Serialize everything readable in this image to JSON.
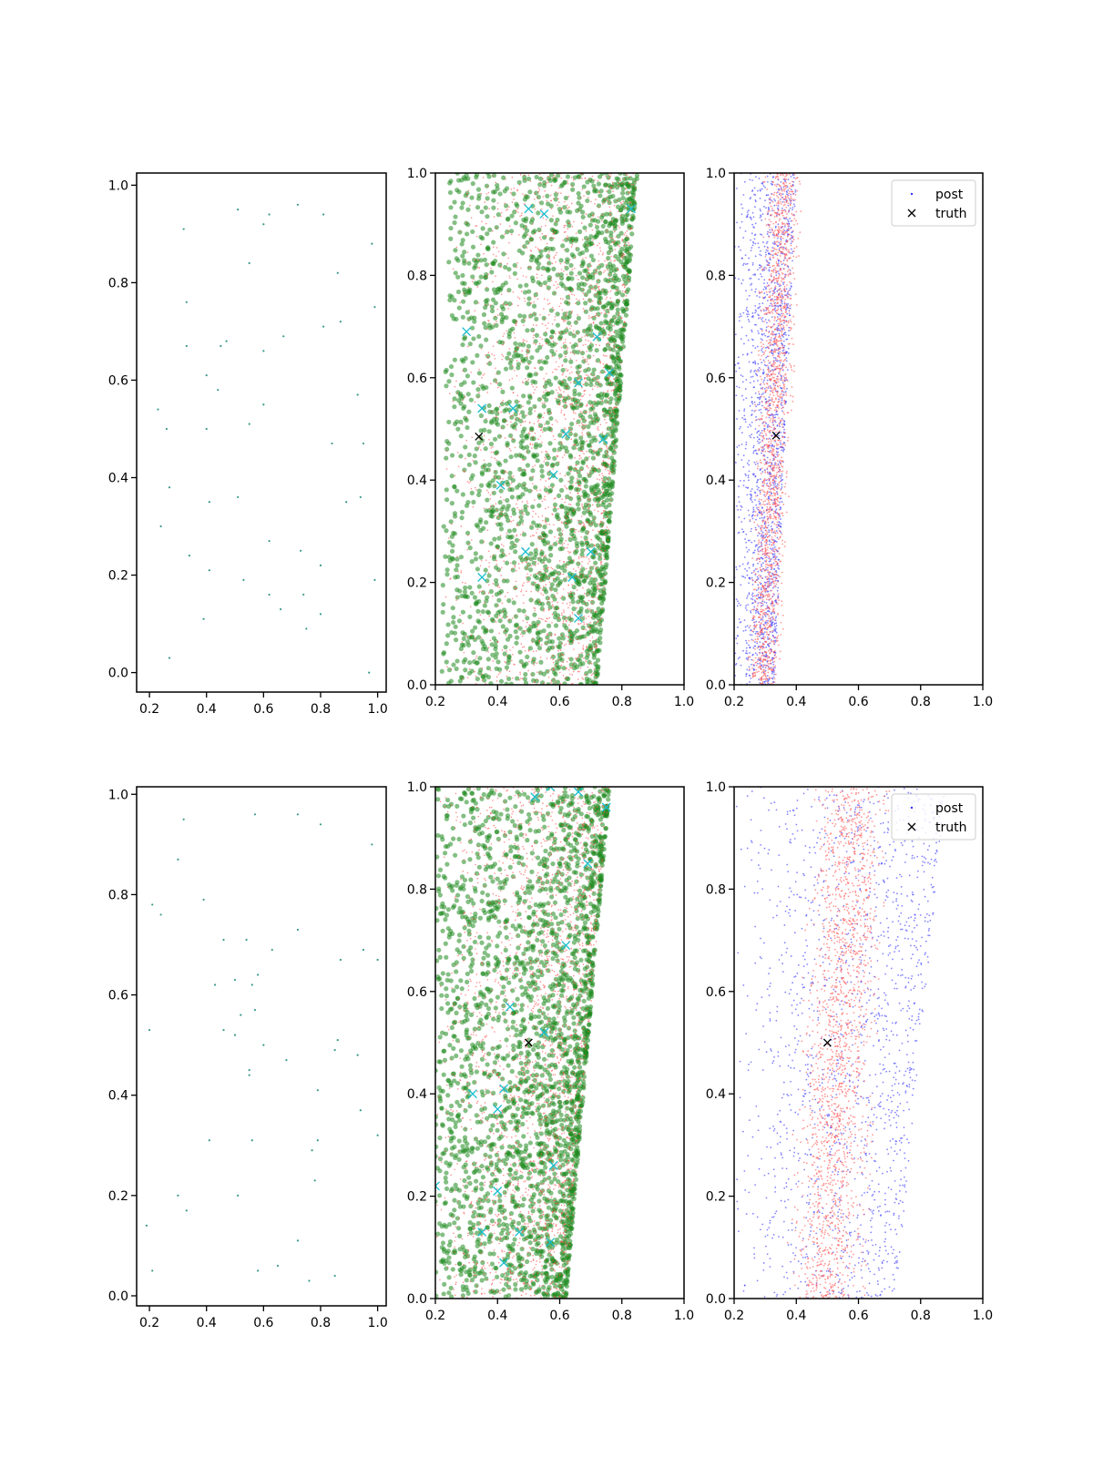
{
  "figure": {
    "background": "#ffffff",
    "colors": {
      "sample_dots": "#3a9a8a",
      "green_points": "#1f8a1f",
      "red_points": "#ff5555",
      "blue_points": "#3333ff",
      "cyan_markers": "#17becf",
      "truth_marker": "#000000"
    }
  },
  "legend": {
    "post_label": "post",
    "truth_label": "truth"
  },
  "chart_data": [
    {
      "type": "scatter",
      "row": 0,
      "col": 0,
      "xlim": [
        0.2,
        1.0
      ],
      "ylim": [
        0.0,
        1.0
      ],
      "xticks": [
        "0.2",
        "0.4",
        "0.6",
        "0.8",
        "1.0"
      ],
      "yticks": [
        "0.0",
        "0.2",
        "0.4",
        "0.6",
        "0.8",
        "1.0"
      ],
      "grid": false,
      "legend": "none",
      "series": [
        {
          "marker": "dot",
          "color": "#3a9a8a",
          "points": [
            [
              0.51,
              0.95
            ],
            [
              0.62,
              0.94
            ],
            [
              0.72,
              0.96
            ],
            [
              0.81,
              0.94
            ],
            [
              0.32,
              0.91
            ],
            [
              0.6,
              0.92
            ],
            [
              0.98,
              0.88
            ],
            [
              0.55,
              0.84
            ],
            [
              0.86,
              0.82
            ],
            [
              0.33,
              0.76
            ],
            [
              0.99,
              0.75
            ],
            [
              0.87,
              0.72
            ],
            [
              0.81,
              0.71
            ],
            [
              0.67,
              0.69
            ],
            [
              0.47,
              0.68
            ],
            [
              0.45,
              0.67
            ],
            [
              0.33,
              0.67
            ],
            [
              0.6,
              0.66
            ],
            [
              0.4,
              0.61
            ],
            [
              0.44,
              0.58
            ],
            [
              0.93,
              0.57
            ],
            [
              0.6,
              0.55
            ],
            [
              0.23,
              0.54
            ],
            [
              0.55,
              0.51
            ],
            [
              0.26,
              0.5
            ],
            [
              0.4,
              0.5
            ],
            [
              0.84,
              0.47
            ],
            [
              0.95,
              0.47
            ],
            [
              0.27,
              0.38
            ],
            [
              0.94,
              0.36
            ],
            [
              0.51,
              0.36
            ],
            [
              0.89,
              0.35
            ],
            [
              0.41,
              0.35
            ],
            [
              0.24,
              0.3
            ],
            [
              0.62,
              0.27
            ],
            [
              0.34,
              0.24
            ],
            [
              0.73,
              0.25
            ],
            [
              0.41,
              0.21
            ],
            [
              0.8,
              0.22
            ],
            [
              0.53,
              0.19
            ],
            [
              0.99,
              0.19
            ],
            [
              0.62,
              0.16
            ],
            [
              0.74,
              0.16
            ],
            [
              0.66,
              0.13
            ],
            [
              0.8,
              0.12
            ],
            [
              0.39,
              0.11
            ],
            [
              0.75,
              0.09
            ],
            [
              0.27,
              0.03
            ],
            [
              0.97,
              0.0
            ]
          ]
        }
      ]
    },
    {
      "type": "scatter",
      "row": 0,
      "col": 1,
      "xlim": [
        0.2,
        1.0
      ],
      "ylim": [
        0.0,
        1.0
      ],
      "xticks": [
        "0.2",
        "0.4",
        "0.6",
        "0.8",
        "1.0"
      ],
      "yticks": [
        "0.0",
        "0.2",
        "0.4",
        "0.6",
        "0.8",
        "1.0"
      ],
      "grid": false,
      "legend": "none",
      "cloud": {
        "left_edge_bottom": 0.22,
        "left_edge_top": 0.24,
        "right_edge_bottom": 0.72,
        "right_edge_top": 0.85,
        "dense_center_bottom": 0.64,
        "dense_center_top": 0.72,
        "green_count": 2200,
        "red_count": 1600
      },
      "series": [
        {
          "marker": "cross",
          "color": "#17becf",
          "points": [
            [
              0.3,
              0.69
            ],
            [
              0.35,
              0.54
            ],
            [
              0.45,
              0.54
            ],
            [
              0.41,
              0.39
            ],
            [
              0.35,
              0.21
            ],
            [
              0.5,
              0.93
            ],
            [
              0.55,
              0.92
            ],
            [
              0.62,
              0.49
            ],
            [
              0.66,
              0.59
            ],
            [
              0.76,
              0.61
            ],
            [
              0.83,
              0.93
            ],
            [
              0.72,
              0.68
            ],
            [
              0.58,
              0.41
            ],
            [
              0.64,
              0.21
            ],
            [
              0.66,
              0.13
            ],
            [
              0.49,
              0.26
            ],
            [
              0.7,
              0.26
            ],
            [
              0.74,
              0.48
            ]
          ]
        },
        {
          "name": "truth",
          "marker": "cross",
          "color": "#000000",
          "points": [
            [
              0.34,
              0.485
            ]
          ]
        }
      ]
    },
    {
      "type": "scatter",
      "row": 0,
      "col": 2,
      "xlim": [
        0.2,
        1.0
      ],
      "ylim": [
        0.0,
        1.0
      ],
      "xticks": [
        "0.2",
        "0.4",
        "0.6",
        "0.8",
        "1.0"
      ],
      "yticks": [
        "0.0",
        "0.2",
        "0.4",
        "0.6",
        "0.8",
        "1.0"
      ],
      "grid": false,
      "legend": "top-right",
      "cloud": {
        "blue_left": 0.2,
        "blue_right_bottom": 0.33,
        "blue_right_top": 0.4,
        "red_left_bottom": 0.24,
        "red_left_top": 0.3,
        "red_right_bottom": 0.35,
        "red_right_top": 0.42,
        "blue_count": 1700,
        "red_count": 1700
      },
      "series": [
        {
          "name": "post",
          "marker": "dot",
          "color": "#3333ff"
        },
        {
          "name": "truth",
          "marker": "cross",
          "color": "#000000",
          "points": [
            [
              0.335,
              0.487
            ]
          ]
        }
      ]
    },
    {
      "type": "scatter",
      "row": 1,
      "col": 0,
      "xlim": [
        0.2,
        1.0
      ],
      "ylim": [
        0.0,
        1.0
      ],
      "xticks": [
        "0.2",
        "0.4",
        "0.6",
        "0.8",
        "1.0"
      ],
      "yticks": [
        "0.0",
        "0.2",
        "0.4",
        "0.6",
        "0.8",
        "1.0"
      ],
      "grid": false,
      "legend": "none",
      "series": [
        {
          "marker": "dot",
          "color": "#3a9a8a",
          "points": [
            [
              0.32,
              0.95
            ],
            [
              0.57,
              0.96
            ],
            [
              0.72,
              0.96
            ],
            [
              0.8,
              0.94
            ],
            [
              0.98,
              0.9
            ],
            [
              0.3,
              0.87
            ],
            [
              0.21,
              0.78
            ],
            [
              0.39,
              0.79
            ],
            [
              0.24,
              0.76
            ],
            [
              0.72,
              0.73
            ],
            [
              0.46,
              0.71
            ],
            [
              0.54,
              0.71
            ],
            [
              0.63,
              0.69
            ],
            [
              0.87,
              0.67
            ],
            [
              1.0,
              0.67
            ],
            [
              0.95,
              0.69
            ],
            [
              0.58,
              0.64
            ],
            [
              0.43,
              0.62
            ],
            [
              0.5,
              0.63
            ],
            [
              0.56,
              0.62
            ],
            [
              0.52,
              0.56
            ],
            [
              0.57,
              0.57
            ],
            [
              0.2,
              0.53
            ],
            [
              0.46,
              0.53
            ],
            [
              0.5,
              0.52
            ],
            [
              0.6,
              0.5
            ],
            [
              0.86,
              0.51
            ],
            [
              0.85,
              0.49
            ],
            [
              0.93,
              0.48
            ],
            [
              0.68,
              0.47
            ],
            [
              0.55,
              0.45
            ],
            [
              0.55,
              0.44
            ],
            [
              0.79,
              0.41
            ],
            [
              0.94,
              0.37
            ],
            [
              0.41,
              0.31
            ],
            [
              0.56,
              0.31
            ],
            [
              0.79,
              0.31
            ],
            [
              1.0,
              0.32
            ],
            [
              0.77,
              0.29
            ],
            [
              0.78,
              0.23
            ],
            [
              0.3,
              0.2
            ],
            [
              0.51,
              0.2
            ],
            [
              0.33,
              0.17
            ],
            [
              0.19,
              0.14
            ],
            [
              0.72,
              0.11
            ],
            [
              0.65,
              0.06
            ],
            [
              0.21,
              0.05
            ],
            [
              0.58,
              0.05
            ],
            [
              0.76,
              0.03
            ],
            [
              0.85,
              0.04
            ]
          ]
        }
      ]
    },
    {
      "type": "scatter",
      "row": 1,
      "col": 1,
      "xlim": [
        0.2,
        1.0
      ],
      "ylim": [
        0.0,
        1.0
      ],
      "xticks": [
        "0.2",
        "0.4",
        "0.6",
        "0.8",
        "1.0"
      ],
      "yticks": [
        "0.0",
        "0.2",
        "0.4",
        "0.6",
        "0.8",
        "1.0"
      ],
      "grid": false,
      "legend": "none",
      "cloud": {
        "left_edge_bottom": 0.2,
        "left_edge_top": 0.2,
        "right_edge_bottom": 0.62,
        "right_edge_top": 0.76,
        "dense_center_bottom": 0.56,
        "dense_center_top": 0.66,
        "green_count": 2400,
        "red_count": 1700
      },
      "series": [
        {
          "marker": "cross",
          "color": "#17becf",
          "points": [
            [
              0.2,
              0.22
            ],
            [
              0.32,
              0.4
            ],
            [
              0.42,
              0.41
            ],
            [
              0.4,
              0.21
            ],
            [
              0.35,
              0.13
            ],
            [
              0.42,
              0.07
            ],
            [
              0.47,
              0.13
            ],
            [
              0.52,
              0.98
            ],
            [
              0.57,
              1.0
            ],
            [
              0.66,
              0.99
            ],
            [
              0.75,
              0.96
            ],
            [
              0.69,
              0.85
            ],
            [
              0.55,
              0.52
            ],
            [
              0.58,
              0.26
            ],
            [
              0.57,
              0.11
            ],
            [
              0.44,
              0.57
            ],
            [
              0.4,
              0.37
            ],
            [
              0.62,
              0.69
            ]
          ]
        },
        {
          "name": "truth",
          "marker": "cross",
          "color": "#000000",
          "points": [
            [
              0.5,
              0.5
            ]
          ]
        }
      ]
    },
    {
      "type": "scatter",
      "row": 1,
      "col": 2,
      "xlim": [
        0.2,
        1.0
      ],
      "ylim": [
        0.0,
        1.0
      ],
      "xticks": [
        "0.2",
        "0.4",
        "0.6",
        "0.8",
        "1.0"
      ],
      "yticks": [
        "0.0",
        "0.2",
        "0.4",
        "0.6",
        "0.8",
        "1.0"
      ],
      "grid": false,
      "legend": "top-right",
      "cloud": {
        "blue_left": 0.2,
        "blue_right_bottom": 0.72,
        "blue_right_top": 0.88,
        "red_left_bottom": 0.38,
        "red_left_top": 0.46,
        "red_right_bottom": 0.62,
        "red_right_top": 0.7,
        "blue_count": 1500,
        "red_count": 1800
      },
      "series": [
        {
          "name": "post",
          "marker": "dot",
          "color": "#3333ff"
        },
        {
          "name": "truth",
          "marker": "cross",
          "color": "#000000",
          "points": [
            [
              0.5,
              0.5
            ]
          ]
        }
      ]
    }
  ]
}
